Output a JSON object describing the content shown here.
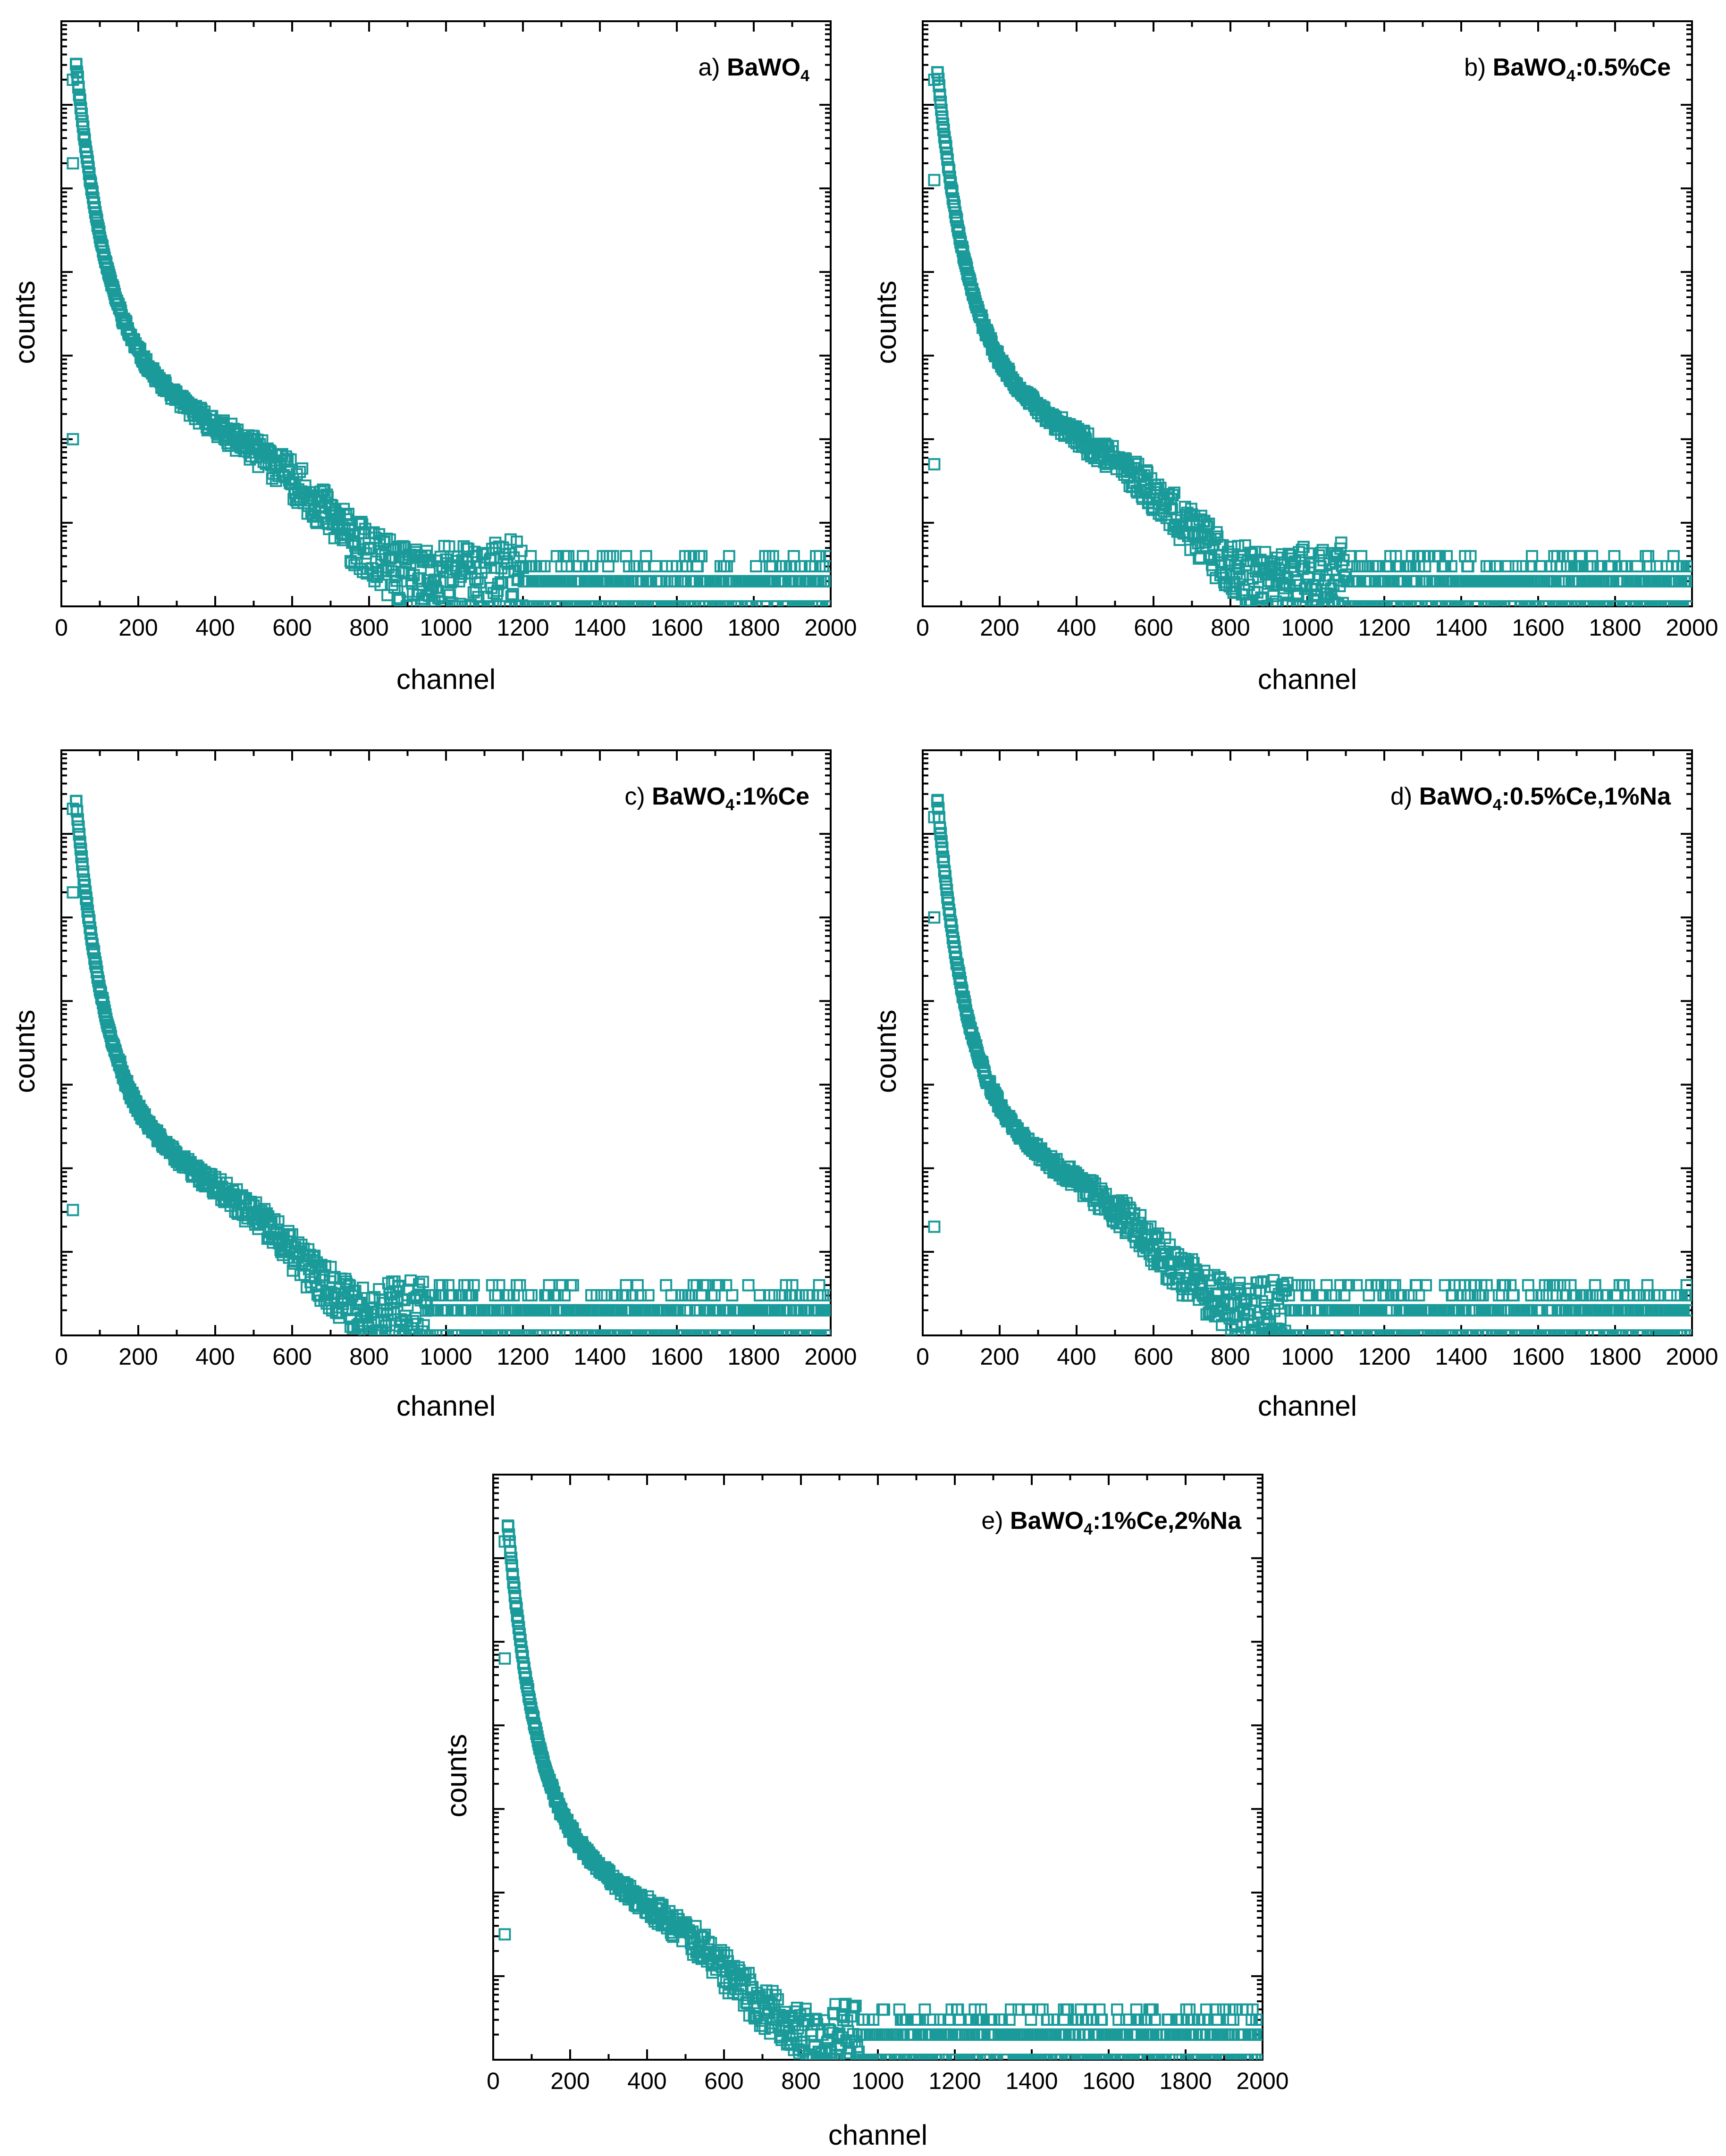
{
  "chart_data": [
    {
      "type": "scatter",
      "panel_prefix": "a)",
      "sample": {
        "base": "BaWO",
        "sub": "4",
        "rest": ""
      },
      "xlabel": "channel",
      "ylabel": "counts",
      "xlim": [
        0,
        2000
      ],
      "xticks": [
        "0",
        "200",
        "400",
        "600",
        "800",
        "1000",
        "1200",
        "1400",
        "1600",
        "1800",
        "2000"
      ],
      "ylog_decades": 7,
      "marker": "open-square",
      "params": {
        "onset": 38,
        "peak": 6.8,
        "fast_amp": 3.3,
        "fast_tau": 75,
        "slow_amp": 3.2,
        "slow_tau": 900,
        "step_center": 660,
        "step_width": 60,
        "step_drop": 0.35,
        "floor": 0.3,
        "cutoff": 1200,
        "spread": 0.5,
        "seed": 11
      },
      "outliers": [
        [
          30,
          5.3
        ],
        [
          30,
          2.0
        ],
        [
          30,
          6.3
        ]
      ]
    },
    {
      "type": "scatter",
      "panel_prefix": "b)",
      "sample": {
        "base": "BaWO",
        "sub": "4",
        "rest": ":0.5%Ce"
      },
      "xlabel": "channel",
      "ylabel": "counts",
      "xlim": [
        0,
        2000
      ],
      "xticks": [
        "0",
        "200",
        "400",
        "600",
        "800",
        "1000",
        "1200",
        "1400",
        "1600",
        "1800",
        "2000"
      ],
      "ylog_decades": 7,
      "marker": "open-square",
      "params": {
        "onset": 38,
        "peak": 6.7,
        "fast_amp": 3.3,
        "fast_tau": 75,
        "slow_amp": 3.1,
        "slow_tau": 850,
        "step_center": 640,
        "step_width": 60,
        "step_drop": 0.35,
        "floor": 0.3,
        "cutoff": 1100,
        "spread": 0.5,
        "seed": 23
      },
      "outliers": [
        [
          30,
          5.1
        ],
        [
          30,
          1.7
        ],
        [
          30,
          6.3
        ]
      ]
    },
    {
      "type": "scatter",
      "panel_prefix": "c)",
      "sample": {
        "base": "BaWO",
        "sub": "4",
        "rest": ":1%Ce"
      },
      "xlabel": "channel",
      "ylabel": "counts",
      "xlim": [
        0,
        2000
      ],
      "xticks": [
        "0",
        "200",
        "400",
        "600",
        "800",
        "1000",
        "1200",
        "1400",
        "1600",
        "1800",
        "2000"
      ],
      "ylog_decades": 7,
      "marker": "open-square",
      "params": {
        "onset": 38,
        "peak": 6.7,
        "fast_amp": 3.4,
        "fast_tau": 70,
        "slow_amp": 3.0,
        "slow_tau": 700,
        "step_center": 600,
        "step_width": 60,
        "step_drop": 0.35,
        "floor": 0.3,
        "cutoff": 950,
        "spread": 0.5,
        "seed": 37
      },
      "outliers": [
        [
          30,
          5.3
        ],
        [
          30,
          1.5
        ],
        [
          30,
          6.3
        ]
      ]
    },
    {
      "type": "scatter",
      "panel_prefix": "d)",
      "sample": {
        "base": "BaWO",
        "sub": "4",
        "rest": ":0.5%Ce,1%Na"
      },
      "xlabel": "channel",
      "ylabel": "counts",
      "xlim": [
        0,
        2000
      ],
      "xticks": [
        "0",
        "200",
        "400",
        "600",
        "800",
        "1000",
        "1200",
        "1400",
        "1600",
        "1800",
        "2000"
      ],
      "ylog_decades": 7,
      "marker": "open-square",
      "params": {
        "onset": 38,
        "peak": 6.6,
        "fast_amp": 3.4,
        "fast_tau": 70,
        "slow_amp": 3.0,
        "slow_tau": 750,
        "step_center": 600,
        "step_width": 60,
        "step_drop": 0.35,
        "floor": 0.3,
        "cutoff": 950,
        "spread": 0.5,
        "seed": 41
      },
      "outliers": [
        [
          30,
          5.0
        ],
        [
          30,
          1.3
        ],
        [
          30,
          6.2
        ]
      ]
    },
    {
      "type": "scatter",
      "panel_prefix": "e)",
      "sample": {
        "base": "BaWO",
        "sub": "4",
        "rest": ":1%Ce,2%Na"
      },
      "xlabel": "channel",
      "ylabel": "counts",
      "xlim": [
        0,
        2000
      ],
      "xticks": [
        "0",
        "200",
        "400",
        "600",
        "800",
        "1000",
        "1200",
        "1400",
        "1600",
        "1800",
        "2000"
      ],
      "ylog_decades": 7,
      "marker": "open-square",
      "params": {
        "onset": 38,
        "peak": 6.6,
        "fast_amp": 3.4,
        "fast_tau": 70,
        "slow_amp": 3.0,
        "slow_tau": 750,
        "step_center": 600,
        "step_width": 60,
        "step_drop": 0.35,
        "floor": 0.3,
        "cutoff": 950,
        "spread": 0.5,
        "seed": 53
      },
      "outliers": [
        [
          30,
          4.8
        ],
        [
          30,
          1.5
        ],
        [
          30,
          6.2
        ]
      ]
    }
  ],
  "colors": {
    "marker": "#1b9a9a",
    "axes": "#000000"
  }
}
